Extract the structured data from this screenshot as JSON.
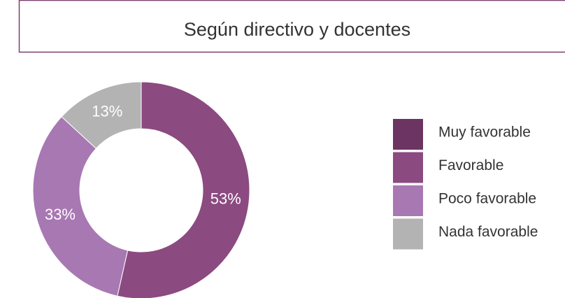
{
  "chart_data": {
    "type": "donut",
    "title": "Según directivo y docentes",
    "categories": [
      "Muy favorable",
      "Favorable",
      "Poco favorable",
      "Nada favorable"
    ],
    "values": [
      0,
      53,
      33,
      13
    ],
    "value_labels": [
      null,
      "53%",
      "33%",
      "13%"
    ],
    "colors": [
      "#6b3462",
      "#8b4a80",
      "#a878b3",
      "#b3b3b3"
    ],
    "legend": "right"
  }
}
